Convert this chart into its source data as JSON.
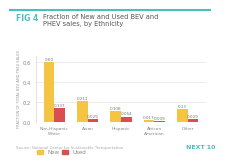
{
  "title_fig": "FIG 4",
  "title_rest": "Fraction of New and Used BEV and\nPHEV sales, by Ethnicity",
  "categories": [
    "Non-Hispanic White",
    "Asian",
    "Hispanic",
    "African American",
    "Other"
  ],
  "new_values": [
    0.6,
    0.211,
    0.108,
    0.017,
    0.13
  ],
  "used_values": [
    0.137,
    0.029,
    0.054,
    0.009,
    0.029
  ],
  "new_labels": [
    "0.60",
    "0.211",
    "0.108",
    "0.017",
    "0.13"
  ],
  "used_labels": [
    "0.137",
    "0.029",
    "0.054",
    "0.009",
    "0.029"
  ],
  "new_color": "#F6C443",
  "used_color": "#D94F4F",
  "ylabel": "FRACTION OF TOTAL BEV AND PHEV SALES",
  "ylim": [
    0,
    0.66
  ],
  "yticks": [
    0.0,
    0.2,
    0.4,
    0.6
  ],
  "source": "Source: National Center for Sustainable Transportation",
  "next_label": "NEXT 10",
  "background_color": "#FFFFFF",
  "fig4_color": "#4BBFBF",
  "text_color": "#555555",
  "axis_color": "#BBBBBB",
  "bar_width": 0.32,
  "teal_line_color": "#4BBFBF"
}
